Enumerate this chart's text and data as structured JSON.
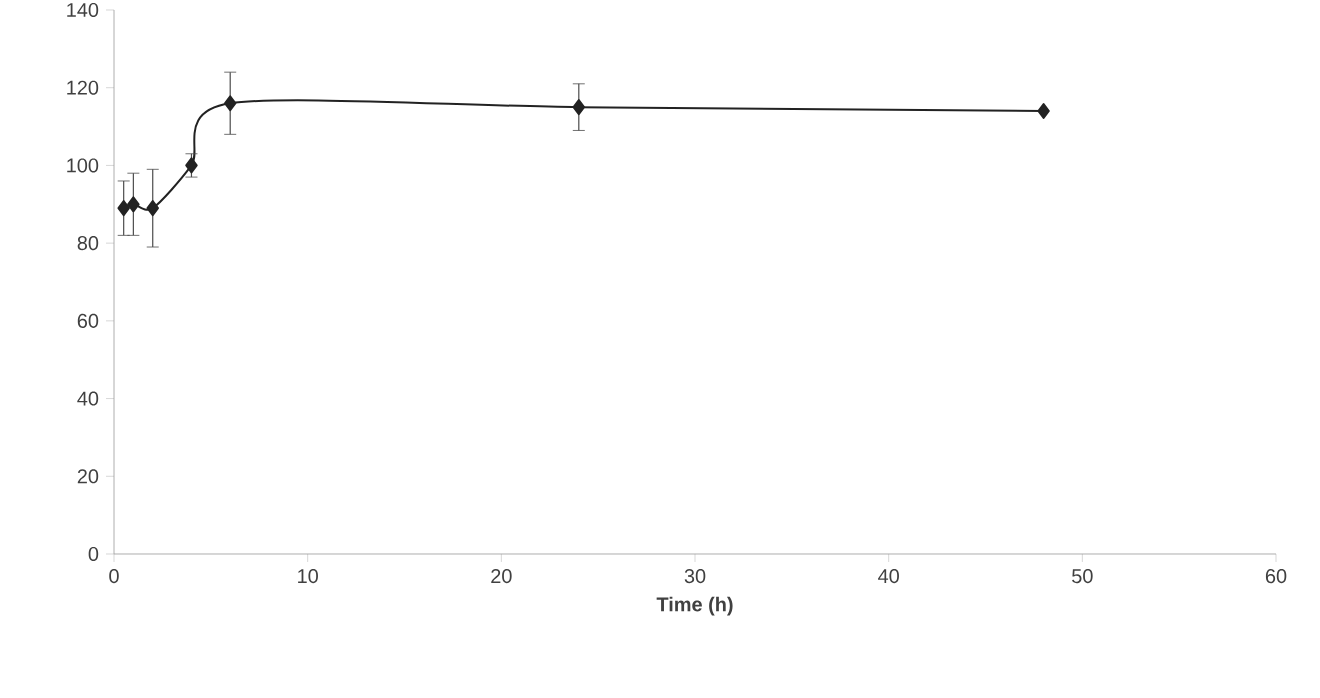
{
  "chart_data": {
    "type": "line",
    "xlabel": "Time (h)",
    "x": [
      0.5,
      1,
      2,
      4,
      6,
      24,
      48
    ],
    "series": [
      {
        "color": "#222222",
        "values": [
          89,
          90,
          89,
          100,
          116,
          115,
          114
        ],
        "errors": [
          7,
          8,
          10,
          3,
          8,
          6,
          null
        ]
      }
    ],
    "xlim": [
      0,
      60
    ],
    "xticks": [
      0,
      10,
      20,
      30,
      40,
      50,
      60
    ],
    "ylim": [
      0,
      140
    ],
    "yticks": [
      0,
      20,
      40,
      60,
      80,
      100,
      120,
      140
    ],
    "marker": "diamond",
    "line_style": "solid",
    "grid": false
  }
}
